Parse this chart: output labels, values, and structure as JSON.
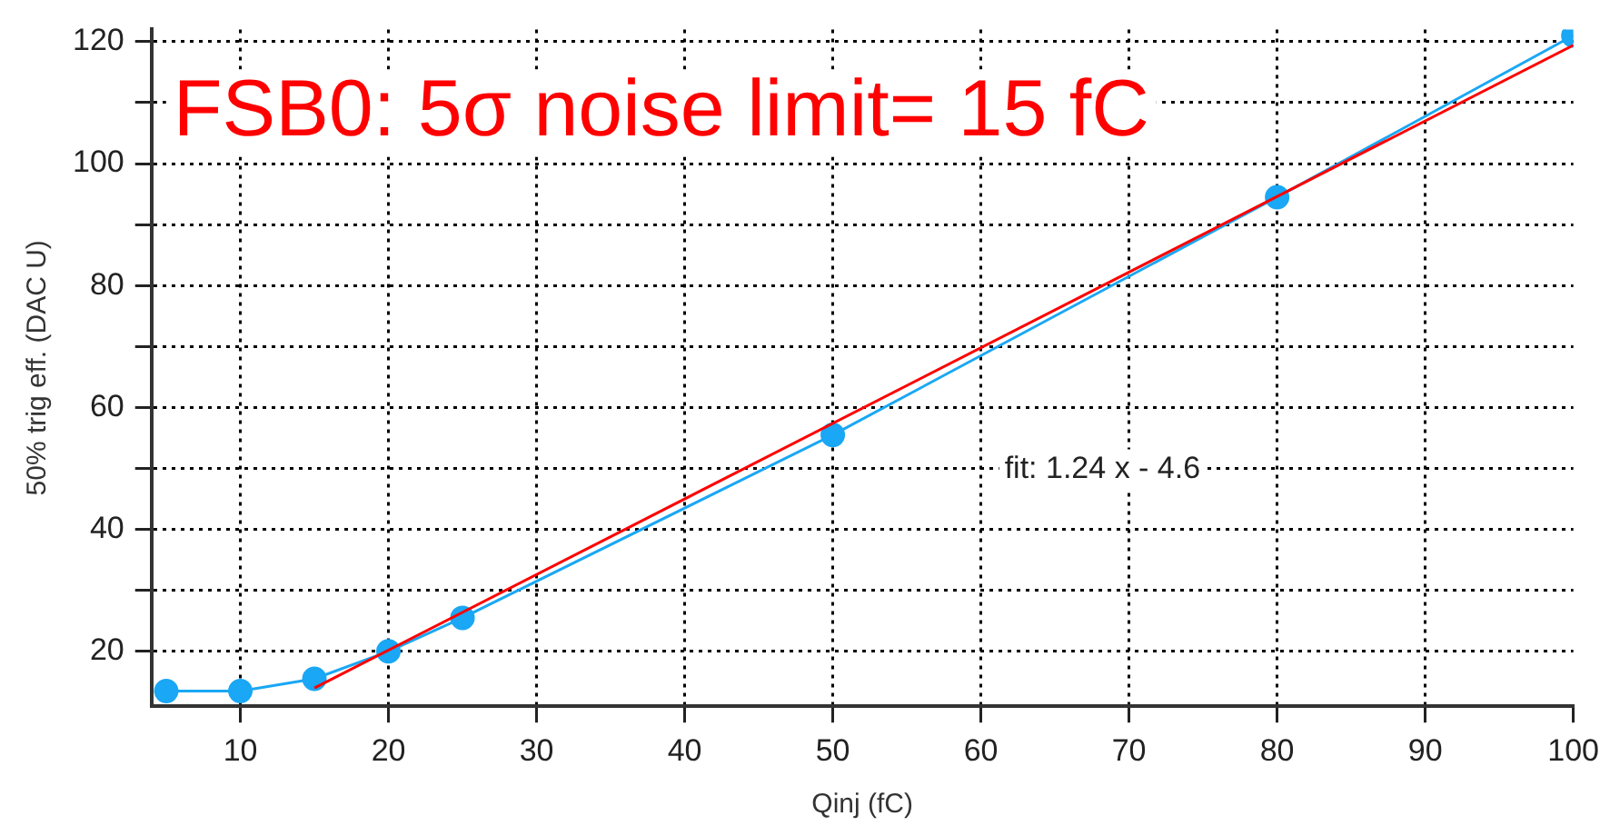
{
  "chart_data": {
    "type": "line",
    "title": "FSB0: 5σ noise limit= 15 fC",
    "xlabel": "Qinj (fC)",
    "ylabel": "50% trig eff. (DAC U)",
    "annotations": [
      "fit: 1.24 x - 4.6"
    ],
    "x": [
      5,
      10,
      15,
      20,
      25,
      50,
      80,
      100
    ],
    "series": [
      {
        "color": "#1aa7f5",
        "marker": "circle",
        "values": [
          13.5,
          13.5,
          15.5,
          20,
          25.5,
          55.5,
          94.5,
          121
        ]
      },
      {
        "type": "line",
        "color": "#ff0000",
        "marker": "none",
        "x": [
          15,
          100
        ],
        "values": [
          14,
          119.4
        ]
      }
    ],
    "xlim": [
      4,
      100
    ],
    "xticks": [
      10,
      20,
      30,
      40,
      50,
      60,
      70,
      80,
      90,
      100
    ],
    "ylim": [
      11,
      122
    ],
    "yticks": [
      20,
      {
        "value": 30,
        "label": null
      },
      40,
      {
        "value": 50,
        "label": null
      },
      60,
      {
        "value": 70,
        "label": null
      },
      80,
      {
        "value": 90,
        "label": null
      },
      100,
      {
        "value": 110,
        "label": null
      },
      120
    ],
    "grid": true,
    "legend": false,
    "line_style": "solid"
  }
}
